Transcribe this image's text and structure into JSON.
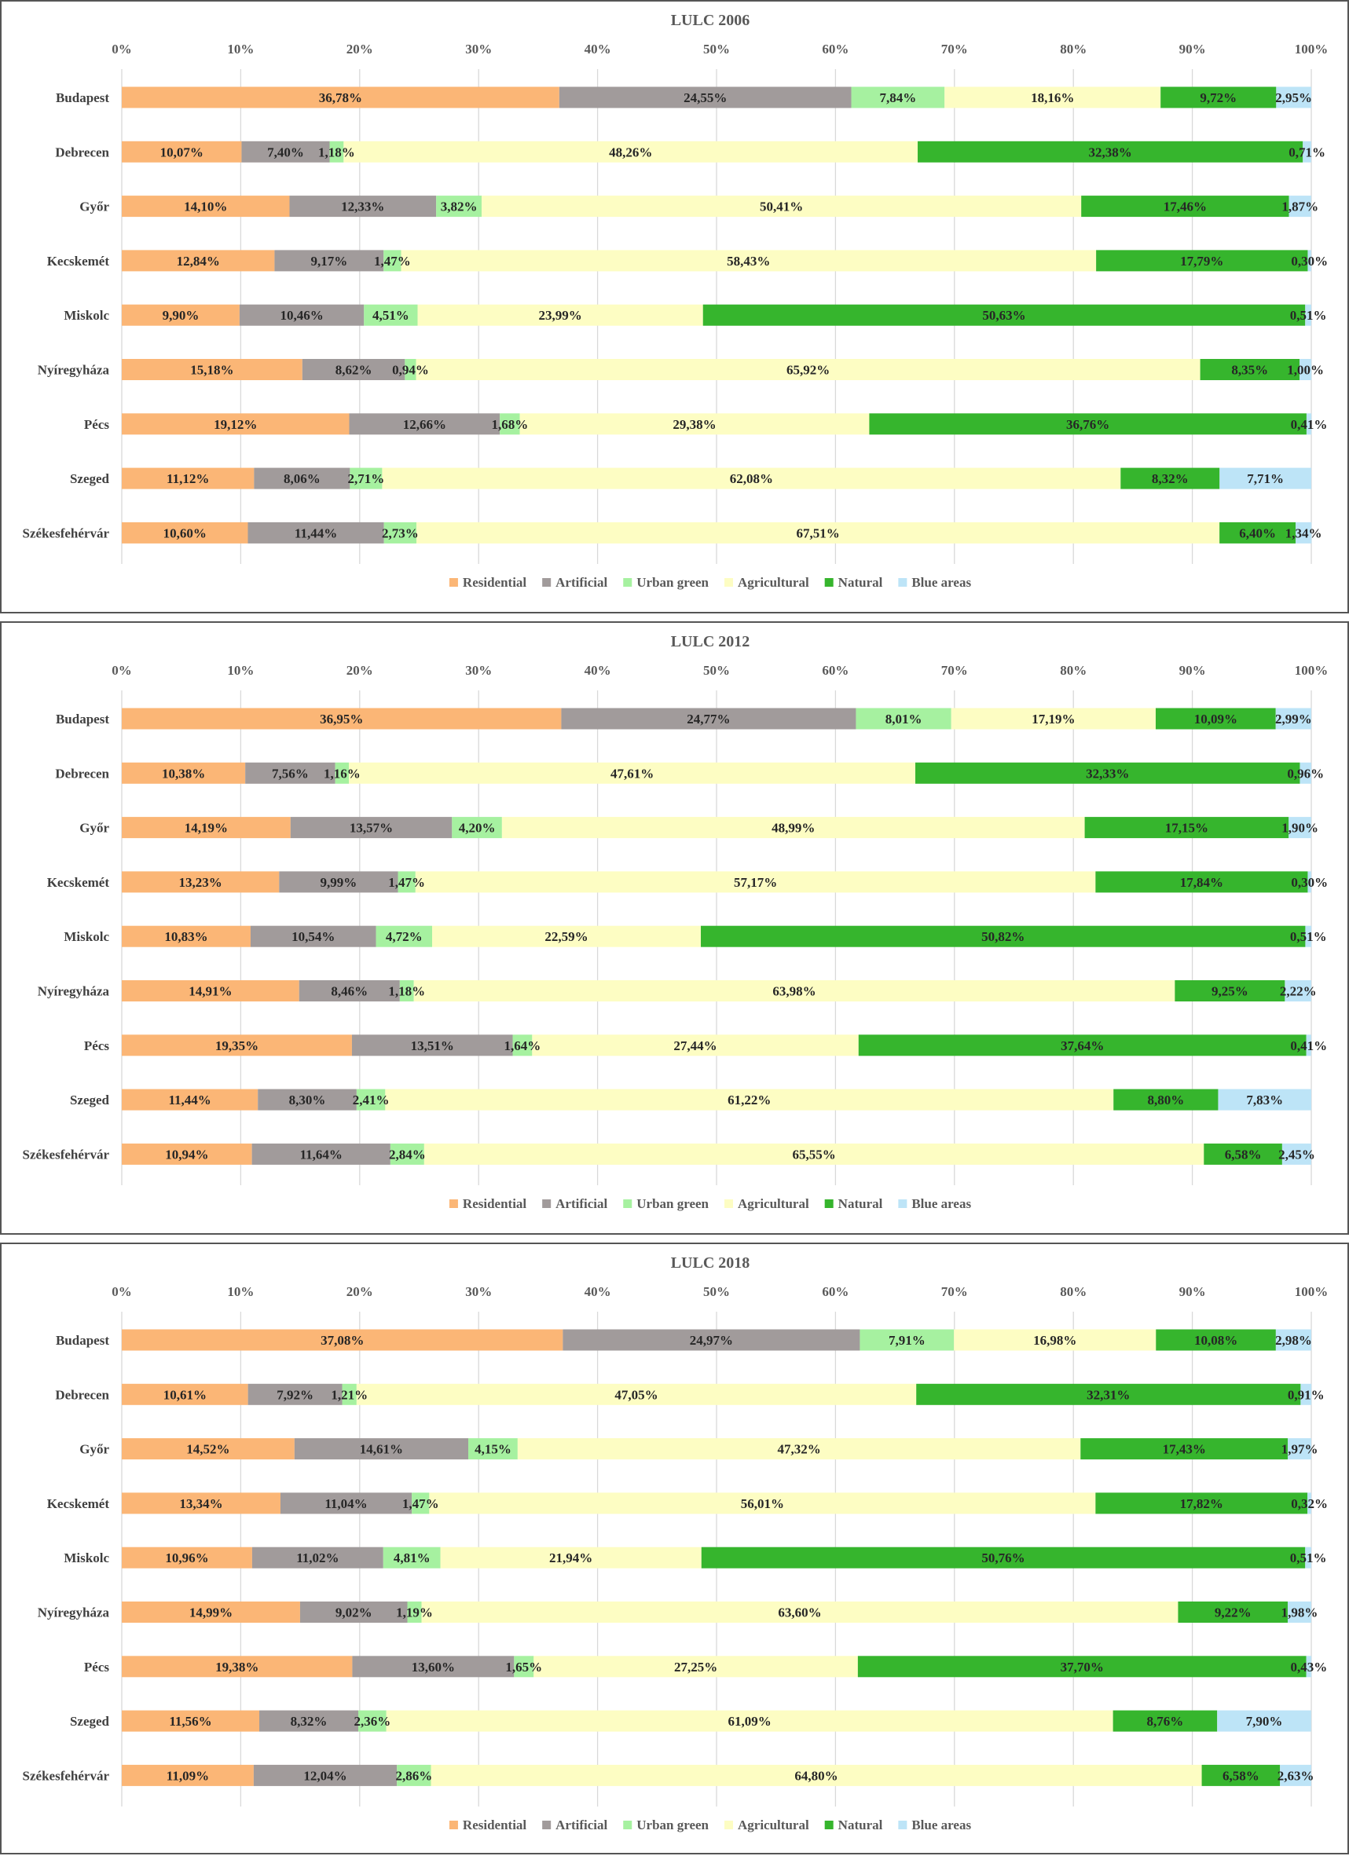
{
  "chart_data": [
    {
      "type": "bar",
      "orientation": "horizontal",
      "stacked": true,
      "title": "LULC 2006",
      "xlim": [
        0,
        100
      ],
      "xticks": [
        "0%",
        "10%",
        "20%",
        "30%",
        "40%",
        "50%",
        "60%",
        "70%",
        "80%",
        "90%",
        "100%"
      ],
      "categories": [
        "Budapest",
        "Debrecen",
        "Győr",
        "Kecskemét",
        "Miskolc",
        "Nyíregyháza",
        "Pécs",
        "Szeged",
        "Székesfehérvár"
      ],
      "series": [
        {
          "name": "Residential",
          "color": "#fbb676",
          "values": [
            36.78,
            10.07,
            14.1,
            12.84,
            9.9,
            15.18,
            19.12,
            11.12,
            10.6
          ],
          "labels": [
            "36,78%",
            "10,07%",
            "14,10%",
            "12,84%",
            "9,90%",
            "15,18%",
            "19,12%",
            "11,12%",
            "10,60%"
          ]
        },
        {
          "name": "Artificial",
          "color": "#a19b9b",
          "values": [
            24.55,
            7.4,
            12.33,
            9.17,
            10.46,
            8.62,
            12.66,
            8.06,
            11.44
          ],
          "labels": [
            "24,55%",
            "7,40%",
            "12,33%",
            "9,17%",
            "10,46%",
            "8,62%",
            "12,66%",
            "8,06%",
            "11,44%"
          ]
        },
        {
          "name": "Urban green",
          "color": "#a6f1a0",
          "values": [
            7.84,
            1.18,
            3.82,
            1.47,
            4.51,
            0.94,
            1.68,
            2.71,
            2.73
          ],
          "labels": [
            "7,84%",
            "1,18%",
            "3,82%",
            "1,47%",
            "4,51%",
            "0,94%",
            "1,68%",
            "2,71%",
            "2,73%"
          ]
        },
        {
          "name": "Agricultural",
          "color": "#fdfdc3",
          "values": [
            18.16,
            48.26,
            50.41,
            58.43,
            23.99,
            65.92,
            29.38,
            62.08,
            67.51
          ],
          "labels": [
            "18,16%",
            "48,26%",
            "50,41%",
            "58,43%",
            "23,99%",
            "65,92%",
            "29,38%",
            "62,08%",
            "67,51%"
          ]
        },
        {
          "name": "Natural",
          "color": "#36b52d",
          "values": [
            9.72,
            32.38,
            17.46,
            17.79,
            50.63,
            8.35,
            36.76,
            8.32,
            6.4
          ],
          "labels": [
            "9,72%",
            "32,38%",
            "17,46%",
            "17,79%",
            "50,63%",
            "8,35%",
            "36,76%",
            "8,32%",
            "6,40%"
          ]
        },
        {
          "name": "Blue areas",
          "color": "#bde4f7",
          "values": [
            2.95,
            0.71,
            1.87,
            0.3,
            0.51,
            1.0,
            0.41,
            7.71,
            1.34
          ],
          "labels": [
            "2,95%",
            "0,71%",
            "1,87%",
            "0,30%",
            "0,51%",
            "1,00%",
            "0,41%",
            "7,71%",
            "1,34%"
          ]
        }
      ],
      "legend": "bottom"
    },
    {
      "type": "bar",
      "orientation": "horizontal",
      "stacked": true,
      "title": "LULC 2012",
      "xlim": [
        0,
        100
      ],
      "xticks": [
        "0%",
        "10%",
        "20%",
        "30%",
        "40%",
        "50%",
        "60%",
        "70%",
        "80%",
        "90%",
        "100%"
      ],
      "categories": [
        "Budapest",
        "Debrecen",
        "Győr",
        "Kecskemét",
        "Miskolc",
        "Nyíregyháza",
        "Pécs",
        "Szeged",
        "Székesfehérvár"
      ],
      "series": [
        {
          "name": "Residential",
          "color": "#fbb676",
          "values": [
            36.95,
            10.38,
            14.19,
            13.23,
            10.83,
            14.91,
            19.35,
            11.44,
            10.94
          ],
          "labels": [
            "36,95%",
            "10,38%",
            "14,19%",
            "13,23%",
            "10,83%",
            "14,91%",
            "19,35%",
            "11,44%",
            "10,94%"
          ]
        },
        {
          "name": "Artificial",
          "color": "#a19b9b",
          "values": [
            24.77,
            7.56,
            13.57,
            9.99,
            10.54,
            8.46,
            13.51,
            8.3,
            11.64
          ],
          "labels": [
            "24,77%",
            "7,56%",
            "13,57%",
            "9,99%",
            "10,54%",
            "8,46%",
            "13,51%",
            "8,30%",
            "11,64%"
          ]
        },
        {
          "name": "Urban green",
          "color": "#a6f1a0",
          "values": [
            8.01,
            1.16,
            4.2,
            1.47,
            4.72,
            1.18,
            1.64,
            2.41,
            2.84
          ],
          "labels": [
            "8,01%",
            "1,16%",
            "4,20%",
            "1,47%",
            "4,72%",
            "1,18%",
            "1,64%",
            "2,41%",
            "2,84%"
          ]
        },
        {
          "name": "Agricultural",
          "color": "#fdfdc3",
          "values": [
            17.19,
            47.61,
            48.99,
            57.17,
            22.59,
            63.98,
            27.44,
            61.22,
            65.55
          ],
          "labels": [
            "17,19%",
            "47,61%",
            "48,99%",
            "57,17%",
            "22,59%",
            "63,98%",
            "27,44%",
            "61,22%",
            "65,55%"
          ]
        },
        {
          "name": "Natural",
          "color": "#36b52d",
          "values": [
            10.09,
            32.33,
            17.15,
            17.84,
            50.82,
            9.25,
            37.64,
            8.8,
            6.58
          ],
          "labels": [
            "10,09%",
            "32,33%",
            "17,15%",
            "17,84%",
            "50,82%",
            "9,25%",
            "37,64%",
            "8,80%",
            "6,58%"
          ]
        },
        {
          "name": "Blue areas",
          "color": "#bde4f7",
          "values": [
            2.99,
            0.96,
            1.9,
            0.3,
            0.51,
            2.22,
            0.41,
            7.83,
            2.45
          ],
          "labels": [
            "2,99%",
            "0,96%",
            "1,90%",
            "0,30%",
            "0,51%",
            "2,22%",
            "0,41%",
            "7,83%",
            "2,45%"
          ]
        }
      ],
      "legend": "bottom"
    },
    {
      "type": "bar",
      "orientation": "horizontal",
      "stacked": true,
      "title": "LULC 2018",
      "xlim": [
        0,
        100
      ],
      "xticks": [
        "0%",
        "10%",
        "20%",
        "30%",
        "40%",
        "50%",
        "60%",
        "70%",
        "80%",
        "90%",
        "100%"
      ],
      "categories": [
        "Budapest",
        "Debrecen",
        "Győr",
        "Kecskemét",
        "Miskolc",
        "Nyíregyháza",
        "Pécs",
        "Szeged",
        "Székesfehérvár"
      ],
      "series": [
        {
          "name": "Residential",
          "color": "#fbb676",
          "values": [
            37.08,
            10.61,
            14.52,
            13.34,
            10.96,
            14.99,
            19.38,
            11.56,
            11.09
          ],
          "labels": [
            "37,08%",
            "10,61%",
            "14,52%",
            "13,34%",
            "10,96%",
            "14,99%",
            "19,38%",
            "11,56%",
            "11,09%"
          ]
        },
        {
          "name": "Artificial",
          "color": "#a19b9b",
          "values": [
            24.97,
            7.92,
            14.61,
            11.04,
            11.02,
            9.02,
            13.6,
            8.32,
            12.04
          ],
          "labels": [
            "24,97%",
            "7,92%",
            "14,61%",
            "11,04%",
            "11,02%",
            "9,02%",
            "13,60%",
            "8,32%",
            "12,04%"
          ]
        },
        {
          "name": "Urban green",
          "color": "#a6f1a0",
          "values": [
            7.91,
            1.21,
            4.15,
            1.47,
            4.81,
            1.19,
            1.65,
            2.36,
            2.86
          ],
          "labels": [
            "7,91%",
            "1,21%",
            "4,15%",
            "1,47%",
            "4,81%",
            "1,19%",
            "1,65%",
            "2,36%",
            "2,86%"
          ]
        },
        {
          "name": "Agricultural",
          "color": "#fdfdc3",
          "values": [
            16.98,
            47.05,
            47.32,
            56.01,
            21.94,
            63.6,
            27.25,
            61.09,
            64.8
          ],
          "labels": [
            "16,98%",
            "47,05%",
            "47,32%",
            "56,01%",
            "21,94%",
            "63,60%",
            "27,25%",
            "61,09%",
            "64,80%"
          ]
        },
        {
          "name": "Natural",
          "color": "#36b52d",
          "values": [
            10.08,
            32.31,
            17.43,
            17.82,
            50.76,
            9.22,
            37.7,
            8.76,
            6.58
          ],
          "labels": [
            "10,08%",
            "32,31%",
            "17,43%",
            "17,82%",
            "50,76%",
            "9,22%",
            "37,70%",
            "8,76%",
            "6,58%"
          ]
        },
        {
          "name": "Blue areas",
          "color": "#bde4f7",
          "values": [
            2.98,
            0.91,
            1.97,
            0.32,
            0.51,
            1.98,
            0.43,
            7.9,
            2.63
          ],
          "labels": [
            "2,98%",
            "0,91%",
            "1,97%",
            "0,32%",
            "0,51%",
            "1,98%",
            "0,43%",
            "7,90%",
            "2,63%"
          ]
        }
      ],
      "legend": "bottom"
    }
  ]
}
